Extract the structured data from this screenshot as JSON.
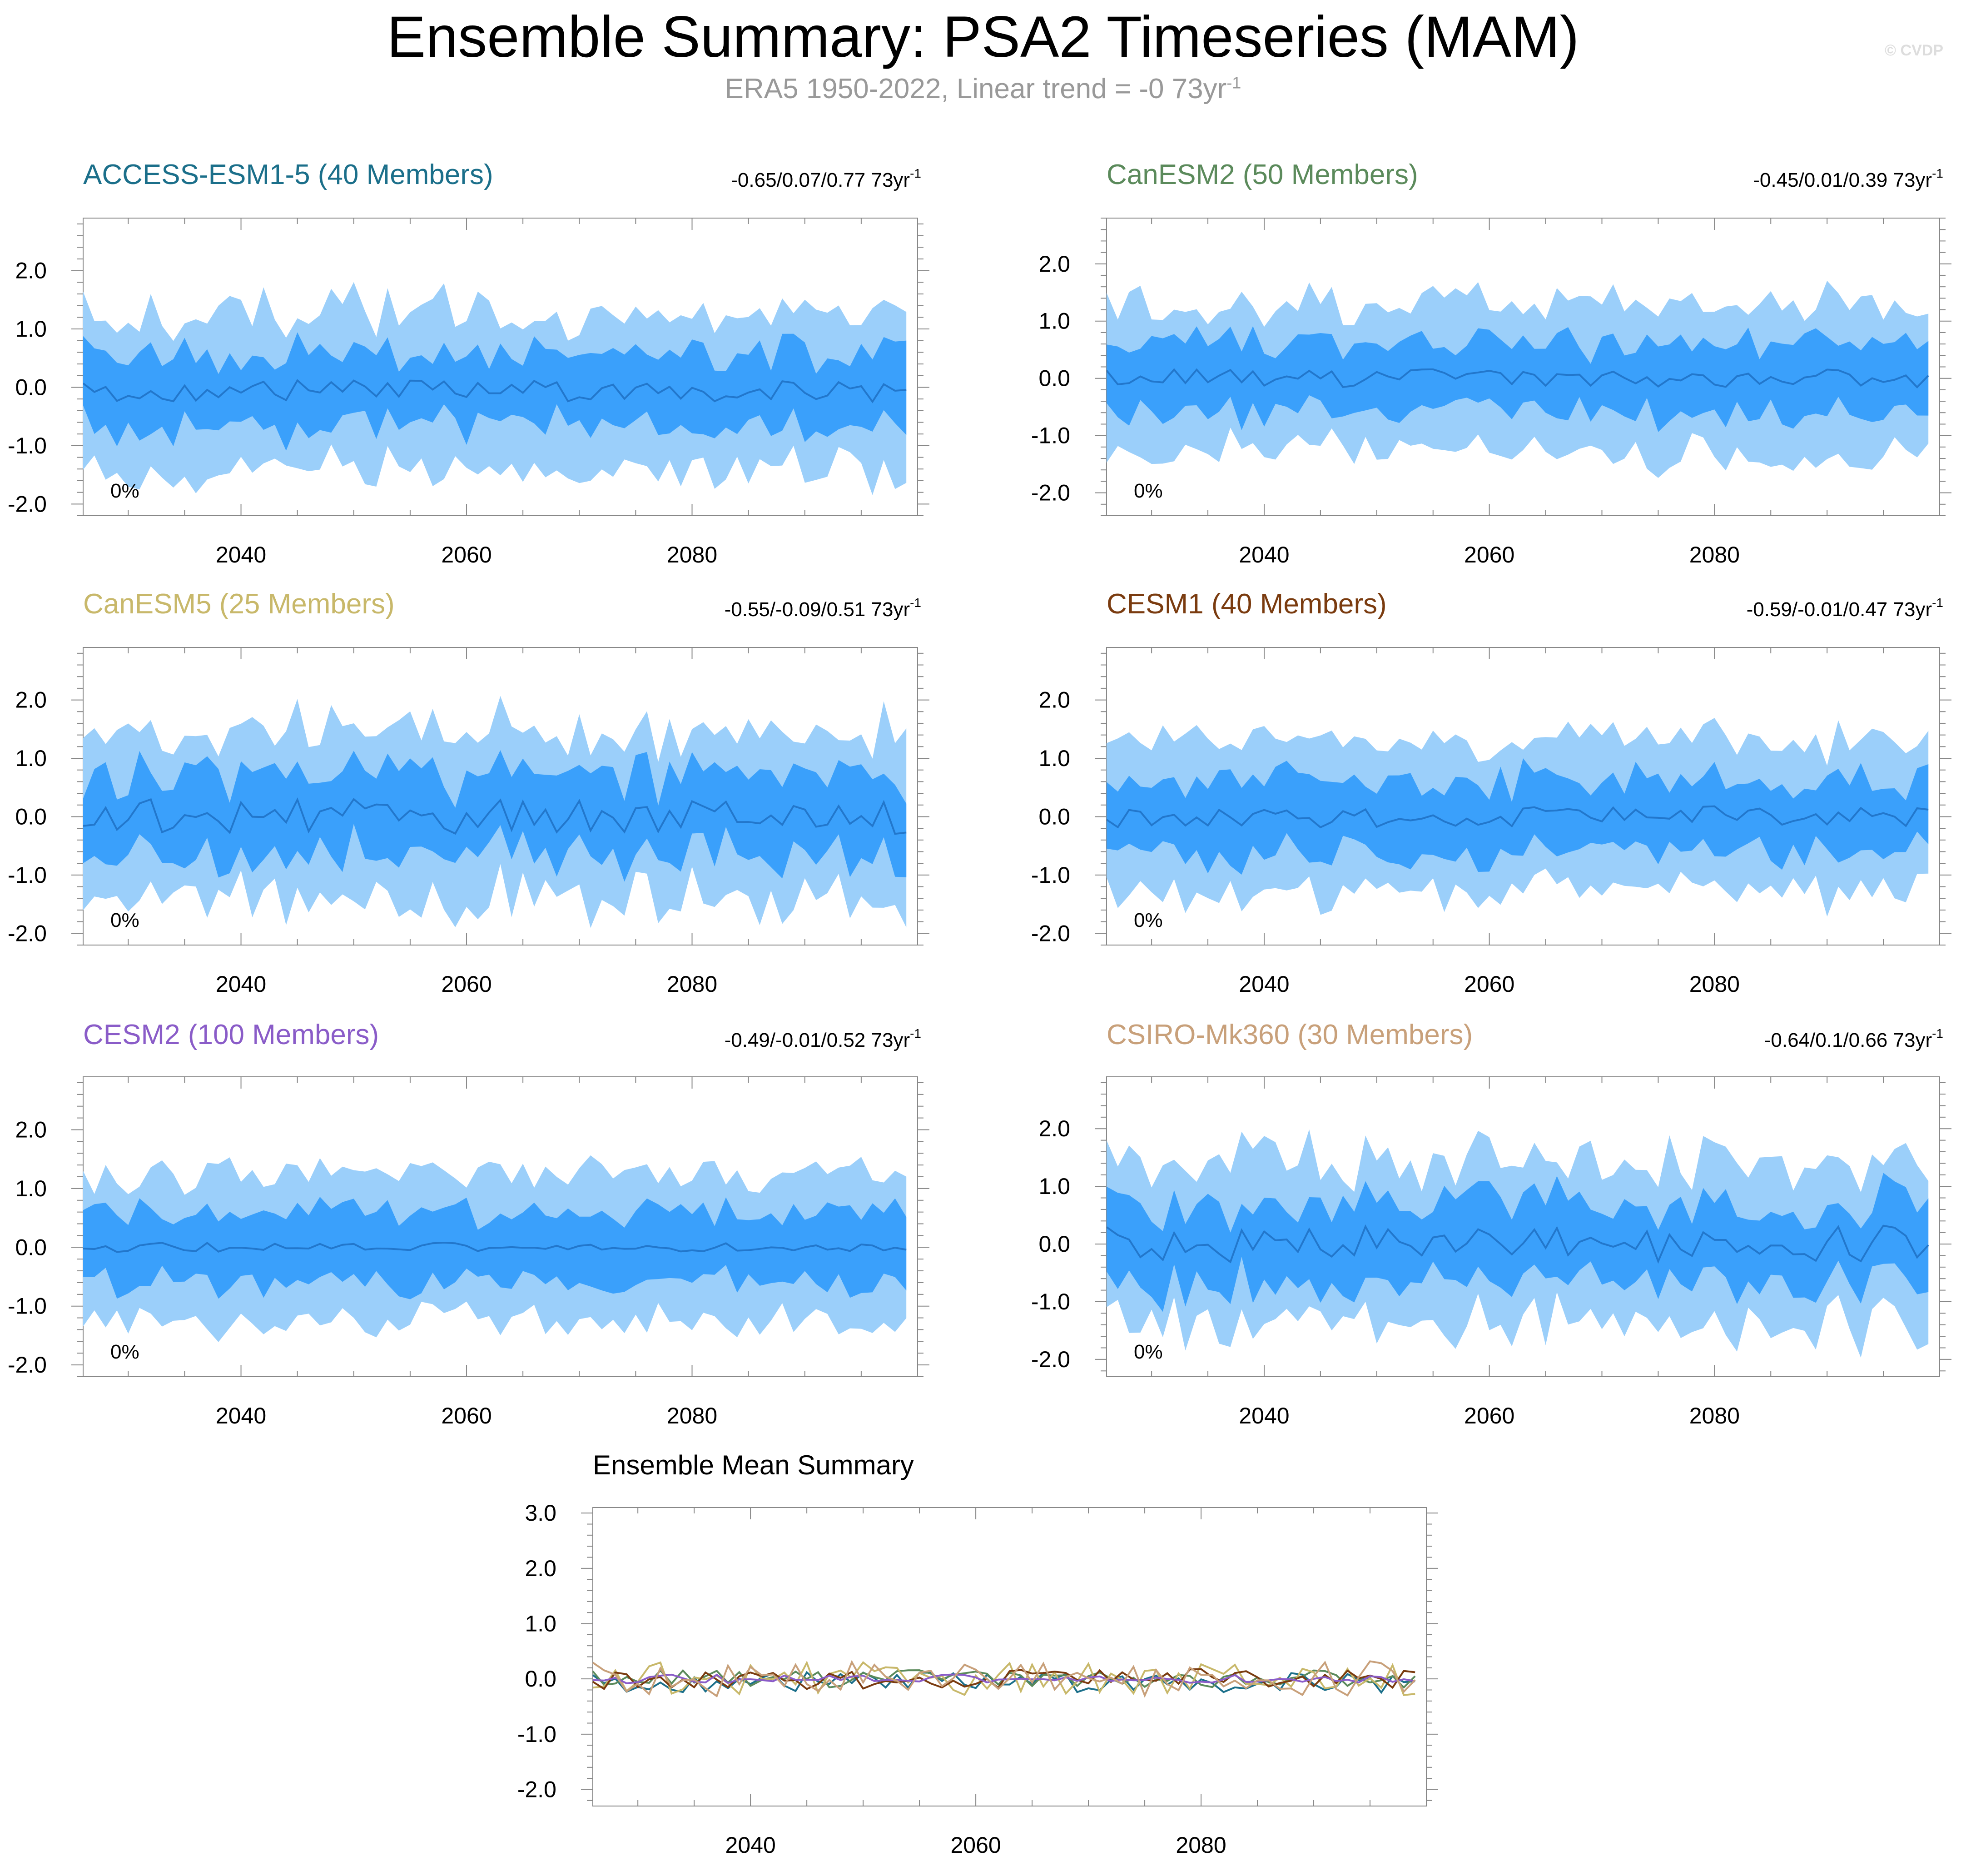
{
  "title": "Ensemble Summary: PSA2 Timeseries (MAM)",
  "subtitle": {
    "text": "ERA5 1950-2022, Linear trend = -0 73yr",
    "superscript": "-1"
  },
  "watermark": "© CVDP",
  "colors": {
    "outer_band": "#9bcffa",
    "inner_band": "#3aa0fb",
    "median_line": "#2277cc",
    "axis": "#888888"
  },
  "chart_data": [
    {
      "type": "area",
      "model": "ACCESS-ESM1-5 (40 Members)",
      "title_color": "#1b6f8a",
      "trend_text": "-0.65/0.07/0.77 73yr",
      "trend_sup": "-1",
      "pct_label": "0%",
      "x_start": 2026,
      "x_end": 2099,
      "xlim": [
        2026,
        2100
      ],
      "ylim": [
        -2.2,
        2.9
      ],
      "x_ticks": [
        2040,
        2060,
        2080
      ],
      "x_tick_labels": [
        "2040",
        "2060",
        "2080"
      ],
      "y_ticks": [
        -2.0,
        -1.0,
        0.0,
        1.0,
        2.0
      ],
      "y_tick_labels": [
        "-2.0",
        "-1.0",
        "0.0",
        "1.0",
        "2.0"
      ],
      "stats": {
        "spread": 1.35,
        "inner_spread": 0.62,
        "med_noise": 0.1,
        "bias": -0.05
      }
    },
    {
      "type": "area",
      "model": "CanESM2 (50 Members)",
      "title_color": "#5b8a5b",
      "trend_text": "-0.45/0.01/0.39 73yr",
      "trend_sup": "-1",
      "pct_label": "0%",
      "x_start": 2026,
      "x_end": 2099,
      "xlim": [
        2026,
        2100
      ],
      "ylim": [
        -2.4,
        2.8
      ],
      "x_ticks": [
        2040,
        2060,
        2080
      ],
      "x_tick_labels": [
        "2040",
        "2060",
        "2080"
      ],
      "y_ticks": [
        -2.0,
        -1.0,
        0.0,
        1.0,
        2.0
      ],
      "y_tick_labels": [
        "-2.0",
        "-1.0",
        "0.0",
        "1.0",
        "2.0"
      ],
      "stats": {
        "spread": 1.3,
        "inner_spread": 0.6,
        "med_noise": 0.08,
        "bias": 0.0
      }
    },
    {
      "type": "area",
      "model": "CanESM5 (25 Members)",
      "title_color": "#c8b86a",
      "trend_text": "-0.55/-0.09/0.51 73yr",
      "trend_sup": "-1",
      "pct_label": "0%",
      "x_start": 2026,
      "x_end": 2099,
      "xlim": [
        2026,
        2100
      ],
      "ylim": [
        -2.2,
        2.9
      ],
      "x_ticks": [
        2040,
        2060,
        2080
      ],
      "x_tick_labels": [
        "2040",
        "2060",
        "2080"
      ],
      "y_ticks": [
        -2.0,
        -1.0,
        0.0,
        1.0,
        2.0
      ],
      "y_tick_labels": [
        "-2.0",
        "-1.0",
        "0.0",
        "1.0",
        "2.0"
      ],
      "stats": {
        "spread": 1.45,
        "inner_spread": 0.7,
        "med_noise": 0.15,
        "bias": 0.0
      }
    },
    {
      "type": "area",
      "model": "CESM1 (40 Members)",
      "title_color": "#7a3b0f",
      "trend_text": "-0.59/-0.01/0.47 73yr",
      "trend_sup": "-1",
      "pct_label": "0%",
      "x_start": 2026,
      "x_end": 2099,
      "xlim": [
        2026,
        2100
      ],
      "ylim": [
        -2.2,
        2.9
      ],
      "x_ticks": [
        2040,
        2060,
        2080
      ],
      "x_tick_labels": [
        "2040",
        "2060",
        "2080"
      ],
      "y_ticks": [
        -2.0,
        -1.0,
        0.0,
        1.0,
        2.0
      ],
      "y_tick_labels": [
        "-2.0",
        "-1.0",
        "0.0",
        "1.0",
        "2.0"
      ],
      "stats": {
        "spread": 1.3,
        "inner_spread": 0.62,
        "med_noise": 0.1,
        "bias": -0.02
      }
    },
    {
      "type": "area",
      "model": "CESM2 (100 Members)",
      "title_color": "#8a5cc8",
      "trend_text": "-0.49/-0.01/0.52 73yr",
      "trend_sup": "-1",
      "pct_label": "0%",
      "x_start": 2026,
      "x_end": 2099,
      "xlim": [
        2026,
        2100
      ],
      "ylim": [
        -2.2,
        2.9
      ],
      "x_ticks": [
        2040,
        2060,
        2080
      ],
      "x_tick_labels": [
        "2040",
        "2060",
        "2080"
      ],
      "y_ticks": [
        -2.0,
        -1.0,
        0.0,
        1.0,
        2.0
      ],
      "y_tick_labels": [
        "-2.0",
        "-1.0",
        "0.0",
        "1.0",
        "2.0"
      ],
      "stats": {
        "spread": 1.25,
        "inner_spread": 0.6,
        "med_noise": 0.04,
        "bias": 0.0
      }
    },
    {
      "type": "area",
      "model": "CSIRO-Mk360 (30 Members)",
      "title_color": "#c8a07a",
      "trend_text": "-0.64/0.1/0.66 73yr",
      "trend_sup": "-1",
      "pct_label": "0%",
      "x_start": 2026,
      "x_end": 2099,
      "xlim": [
        2026,
        2100
      ],
      "ylim": [
        -2.3,
        2.9
      ],
      "x_ticks": [
        2040,
        2060,
        2080
      ],
      "x_tick_labels": [
        "2040",
        "2060",
        "2080"
      ],
      "y_ticks": [
        -2.0,
        -1.0,
        0.0,
        1.0,
        2.0
      ],
      "y_tick_labels": [
        "-2.0",
        "-1.0",
        "0.0",
        "1.0",
        "2.0"
      ],
      "stats": {
        "spread": 1.4,
        "inner_spread": 0.68,
        "med_noise": 0.16,
        "bias": 0.0
      }
    },
    {
      "type": "line",
      "title": "Ensemble Mean Summary",
      "x_start": 2026,
      "x_end": 2099,
      "xlim": [
        2026,
        2100
      ],
      "ylim": [
        -2.3,
        3.1
      ],
      "x_ticks": [
        2040,
        2060,
        2080
      ],
      "x_tick_labels": [
        "2040",
        "2060",
        "2080"
      ],
      "y_ticks": [
        -2.0,
        -1.0,
        0.0,
        1.0,
        2.0,
        3.0
      ],
      "y_tick_labels": [
        "-2.0",
        "-1.0",
        "0.0",
        "1.0",
        "2.0",
        "3.0"
      ],
      "series": [
        {
          "name": "ACCESS-ESM1-5",
          "color": "#1b6f8a"
        },
        {
          "name": "CanESM2",
          "color": "#5b8a5b"
        },
        {
          "name": "CanESM5",
          "color": "#c8b86a"
        },
        {
          "name": "CESM1",
          "color": "#7a3b0f"
        },
        {
          "name": "CESM2",
          "color": "#8a5cc8"
        },
        {
          "name": "CSIRO-Mk360",
          "color": "#c8a07a"
        }
      ]
    }
  ]
}
